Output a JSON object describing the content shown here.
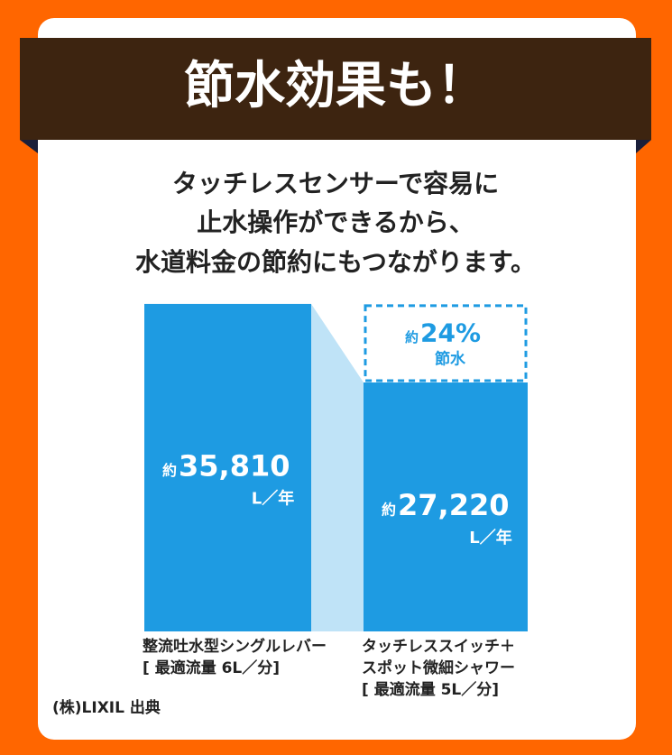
{
  "chart_data": {
    "type": "bar",
    "title": "節水効果も！",
    "subtitle": [
      "タッチレスセンサーで容易に",
      "止水操作ができるから、",
      "水道料金の節約にもつながります。"
    ],
    "categories": [
      "整流吐水型シングルレバー\n[ 最適流量 6L／分]",
      "タッチレススイッチ＋\nスポット微細シャワー\n[ 最適流量 5L／分]"
    ],
    "values": [
      35810,
      27220
    ],
    "value_labels": [
      "35,810",
      "27,220"
    ],
    "value_prefix": "約",
    "unit": "L／年",
    "color": "#1e9be2",
    "ylim": [
      0,
      36000
    ],
    "annotation": {
      "prefix": "約",
      "value": 24,
      "label": "24%",
      "note": "節水"
    },
    "source": "(株)LIXIL 出典"
  }
}
